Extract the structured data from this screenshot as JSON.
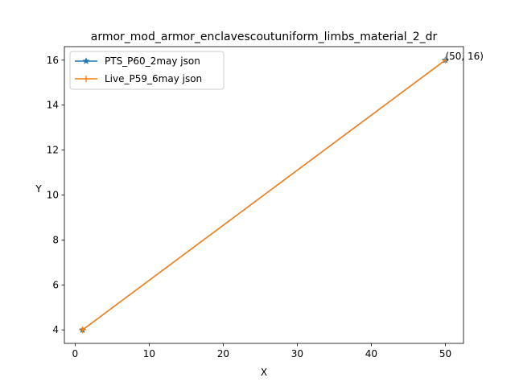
{
  "chart_data": {
    "type": "line",
    "title": "armor_mod_armor_enclavescoutuniform_limbs_material_2_dr",
    "xlabel": "X",
    "ylabel": "Y",
    "xlim": [
      -1.45,
      52.45
    ],
    "ylim": [
      3.4,
      16.6
    ],
    "xticks": [
      0,
      10,
      20,
      30,
      40,
      50
    ],
    "yticks": [
      4,
      6,
      8,
      10,
      12,
      14,
      16
    ],
    "grid": false,
    "legend_position": "upper-left",
    "series": [
      {
        "name": "PTS_P60_2may json",
        "color": "#1f77b4",
        "marker": "star",
        "x": [
          1,
          50
        ],
        "y": [
          4,
          16
        ]
      },
      {
        "name": "Live_P59_6may json",
        "color": "#ff7f0e",
        "marker": "plus",
        "x": [
          1,
          50
        ],
        "y": [
          4,
          16
        ]
      }
    ],
    "annotations": [
      {
        "text": "(50, 16)",
        "x": 50,
        "y": 16
      }
    ]
  }
}
